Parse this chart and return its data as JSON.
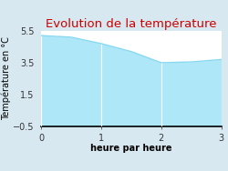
{
  "title": "Evolution de la température",
  "xlabel": "heure par heure",
  "ylabel": "Température en °C",
  "xlim": [
    0,
    3
  ],
  "ylim": [
    -0.5,
    5.5
  ],
  "xticks": [
    0,
    1,
    2,
    3
  ],
  "yticks": [
    -0.5,
    1.5,
    3.5,
    5.5
  ],
  "x": [
    0,
    0.5,
    1.0,
    1.5,
    2.0,
    2.5,
    3.0
  ],
  "y": [
    5.2,
    5.1,
    4.7,
    4.2,
    3.5,
    3.55,
    3.7
  ],
  "line_color": "#88d8f0",
  "fill_color": "#aee8f8",
  "title_color": "#cc0000",
  "background_color": "#d8e8f0",
  "axes_bg_color": "#ffffff",
  "grid_color": "#ccddee",
  "title_fontsize": 9.5,
  "label_fontsize": 7,
  "tick_fontsize": 7
}
